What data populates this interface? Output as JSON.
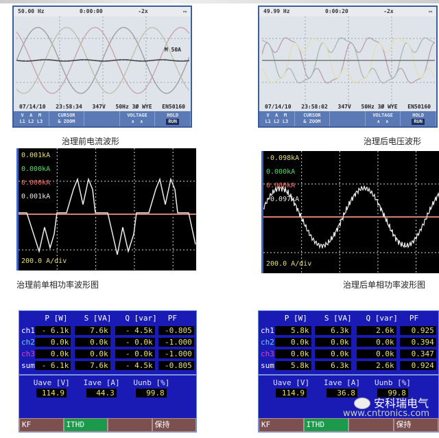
{
  "panels": {
    "current_before": {
      "status": {
        "freq": "50.00 Hz",
        "time": "0:00:00",
        "zoom": "-2x"
      },
      "marker": "M  50A",
      "info": {
        "date": "07/14/10",
        "clock": "23:58:34",
        "voltage": "347V",
        "config": "50Hz 3Ø WYE",
        "std": "EN50160"
      },
      "buttons": [
        "V  A  M\nL1 L2 L3",
        "CURSOR\n& ZOOM",
        "",
        "VOLTAGE\n∧  ∧",
        "HOLD\nRUN"
      ],
      "caption": "治理前电流波形"
    },
    "voltage_after": {
      "status": {
        "freq": "49.99 Hz",
        "time": "0:00:20",
        "zoom": "-2x"
      },
      "info": {
        "date": "07/14/10",
        "clock": "23:58:02",
        "voltage": "347V",
        "config": "50Hz 3Ø WYE",
        "std": "EN50160"
      },
      "buttons": [
        "V  A  M\nL1 L2 L3",
        "CURSOR\n& ZOOM",
        "",
        "VOLTAGE\n∧  ∧",
        "HOLD\nRUN"
      ],
      "caption": "治理后电压波形"
    },
    "power_wave_before": {
      "labels": [
        "0.001kA",
        "0.000kA",
        "0.000kA",
        "0.001kA"
      ],
      "scale": "200.0 A/div",
      "caption": "治理前单相功率波形图"
    },
    "power_wave_after": {
      "labels": [
        "-0.098kA",
        "0.000kA",
        "0.000kA",
        "-0.097kA"
      ],
      "scale": "200.0 A/div",
      "caption": "治理后单相功率波形图"
    },
    "power_table_before": {
      "headers": [
        "P  [W]",
        "S  [VA]",
        "Q [var]",
        "PF"
      ],
      "rows": [
        {
          "ch": "ch1",
          "p": "- 6.1k",
          "s": "7.6k",
          "q": "-  4.5k",
          "pf": "-0.805"
        },
        {
          "ch": "ch2",
          "p": "0.0k",
          "s": "0.0k",
          "q": "-  0.0k",
          "pf": "-1.000"
        },
        {
          "ch": "ch3",
          "p": "0.0k",
          "s": "0.0k",
          "q": "-  0.0k",
          "pf": "-1.000"
        },
        {
          "ch": "sum",
          "p": "- 6.1k",
          "s": "7.6k",
          "q": "-  4.5k",
          "pf": "-0.805"
        }
      ],
      "avg_headers": [
        "Uave [V]",
        "Iave [A]",
        "Uunb [%]"
      ],
      "avg_values": [
        "114.9",
        "44.3",
        "99.8"
      ],
      "buttons": [
        "KF",
        "ITHD",
        "",
        "保持"
      ]
    },
    "power_table_after": {
      "headers": [
        "P  [W]",
        "S  [VA]",
        "Q [var]",
        "PF"
      ],
      "rows": [
        {
          "ch": "ch1",
          "p": "5.8k",
          "s": "6.3k",
          "q": "2.6k",
          "pf": "0.925"
        },
        {
          "ch": "ch2",
          "p": "0.0k",
          "s": "0.0k",
          "q": "0.0k",
          "pf": "0.394"
        },
        {
          "ch": "ch3",
          "p": "0.0k",
          "s": "0.0k",
          "q": "0.0k",
          "pf": "0.347"
        },
        {
          "ch": "sum",
          "p": "5.8k",
          "s": "6.3k",
          "q": "2.6k",
          "pf": "0.924"
        }
      ],
      "avg_headers": [
        "Uave [V]",
        "Iave [A]",
        "Uunb [%]"
      ],
      "avg_values": [
        "114.9",
        "36.8",
        "99.8"
      ],
      "buttons": [
        "KF",
        "ITHD",
        "",
        "保持"
      ]
    }
  },
  "watermark": {
    "brand": "安科瑞电气",
    "site": "www.cntronics.com"
  },
  "colors": {
    "ch1": "#ffffff",
    "ch2": "#6fd0e8",
    "ch3": "#e040c0",
    "cell_text": "#e8e070",
    "screen_blue": "#1a1ab4",
    "active_button": "#1c9a4c"
  }
}
